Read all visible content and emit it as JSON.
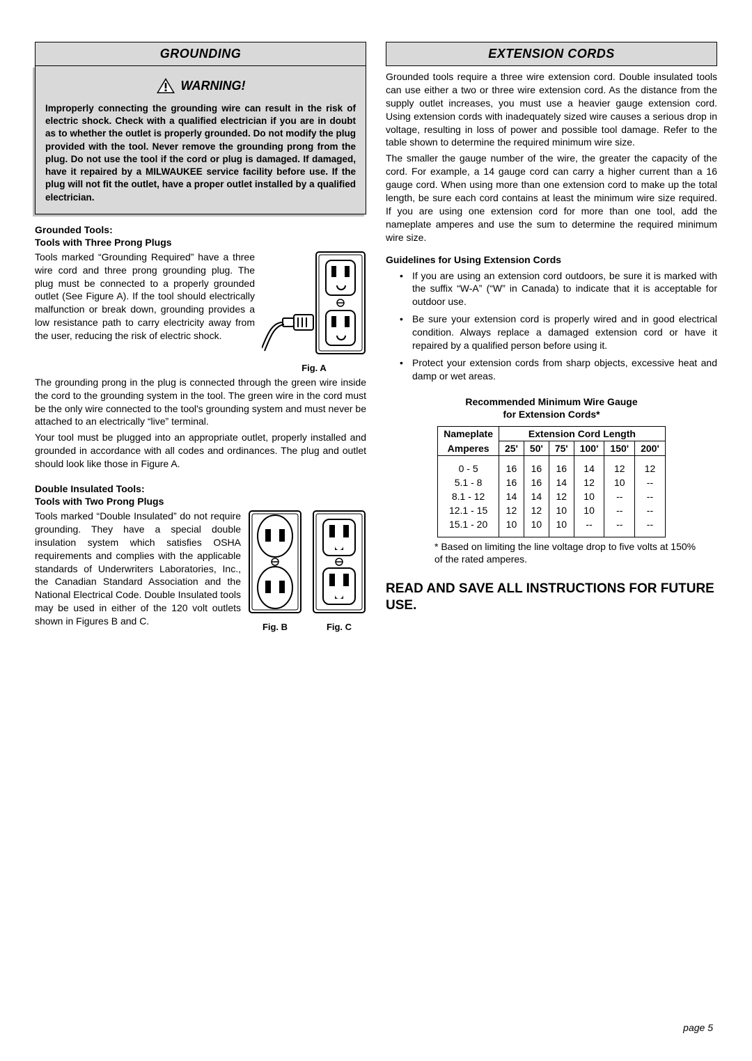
{
  "left": {
    "header": "GROUNDING",
    "warning_label": "WARNING!",
    "warning_body": "Improperly connecting the grounding wire can result in the risk of electric shock. Check with a qualified electrician if you are in doubt as to whether the outlet is properly grounded. Do not modify the plug provided with the tool. Never remove the grounding prong from the plug. Do not use the tool if the cord or plug is damaged. If damaged, have it repaired by a MILWAUKEE service facility before use. If the plug will not fit the outlet, have a proper outlet installed by a qualified electrician.",
    "grounded_h1": "Grounded Tools:",
    "grounded_h2": "Tools with Three Prong Plugs",
    "grounded_p1": "Tools marked “Grounding Required” have a three wire cord and three prong grounding plug. The plug must be connected to a properly grounded outlet (See Figure A). If the tool should electrically malfunction or break down, grounding provides a low resistance path to carry electricity away from the user, reducing the risk of electric shock.",
    "figA": "Fig. A",
    "grounded_p2": "The grounding prong in the plug is connected through the green wire inside the cord to the grounding system in the tool. The green wire in the cord must be the only wire connected to the tool's grounding system and must never be attached to an electrically “live” terminal.",
    "grounded_p3": "Your tool must be plugged into an appropriate outlet, properly installed and grounded in accordance with all codes and ordinances. The plug and outlet should look like those in Figure A.",
    "double_h1": "Double Insulated Tools:",
    "double_h2": "Tools with Two Prong Plugs",
    "double_p1": "Tools marked “Double Insulated” do not require grounding. They have a special double insulation system which satisfies OSHA requirements and complies with the applicable standards of Underwriters Laboratories, Inc., the Canadian Standard Association and the National Electrical Code. Double Insulated tools may be used in either of the 120 volt outlets shown in Figures B and C.",
    "figB": "Fig. B",
    "figC": "Fig. C"
  },
  "right": {
    "header": "EXTENSION CORDS",
    "p1": "Grounded tools require a three wire extension cord. Double insulated tools can use either a two or three wire extension cord. As the distance from the supply outlet increases, you must use a heavier gauge extension cord. Using extension cords with inadequately sized wire causes a serious drop in voltage, resulting in loss of power and possible tool damage. Refer to the table shown to determine the required minimum wire size.",
    "p2": "The smaller the gauge number of the wire, the greater the capacity of the cord. For example, a 14 gauge cord can carry a higher current than a 16 gauge cord. When using more than one extension cord to make up the total length, be sure each cord contains at least the minimum wire size required. If you are using one extension cord for more than one tool, add the nameplate amperes and use the sum to determine the required minimum wire size.",
    "guidelines_h": "Guidelines for Using Extension Cords",
    "b1": "If you are using an extension cord outdoors, be sure it is marked with the suffix “W-A” (“W” in Canada) to indicate that it is acceptable for outdoor use.",
    "b2": "Be sure your extension cord is properly wired and in good electrical condition. Always replace a damaged extension cord or have it repaired by a qualified person before using it.",
    "b3": "Protect your extension cords from sharp objects, excessive heat and damp or wet areas.",
    "table_title1": "Recommended Minimum Wire Gauge",
    "table_title2": "for Extension Cords*",
    "col_nameplate": "Nameplate",
    "col_amperes": "Amperes",
    "col_ext_len": "Extension Cord Length",
    "lengths": [
      "25'",
      "50'",
      "75'",
      "100'",
      "150'",
      "200'"
    ],
    "rows": [
      {
        "amps": "0 - 5",
        "v": [
          "16",
          "16",
          "16",
          "14",
          "12",
          "12"
        ]
      },
      {
        "amps": "5.1 - 8",
        "v": [
          "16",
          "16",
          "14",
          "12",
          "10",
          "--"
        ]
      },
      {
        "amps": "8.1 - 12",
        "v": [
          "14",
          "14",
          "12",
          "10",
          "--",
          "--"
        ]
      },
      {
        "amps": "12.1 - 15",
        "v": [
          "12",
          "12",
          "10",
          "10",
          "--",
          "--"
        ]
      },
      {
        "amps": "15.1 - 20",
        "v": [
          "10",
          "10",
          "10",
          "--",
          "--",
          "--"
        ]
      }
    ],
    "tnote": "* Based on limiting the line voltage drop to five volts at 150% of the rated amperes.",
    "read_save": "READ AND SAVE ALL INSTRUCTIONS FOR FUTURE USE."
  },
  "page_label": "page 5"
}
